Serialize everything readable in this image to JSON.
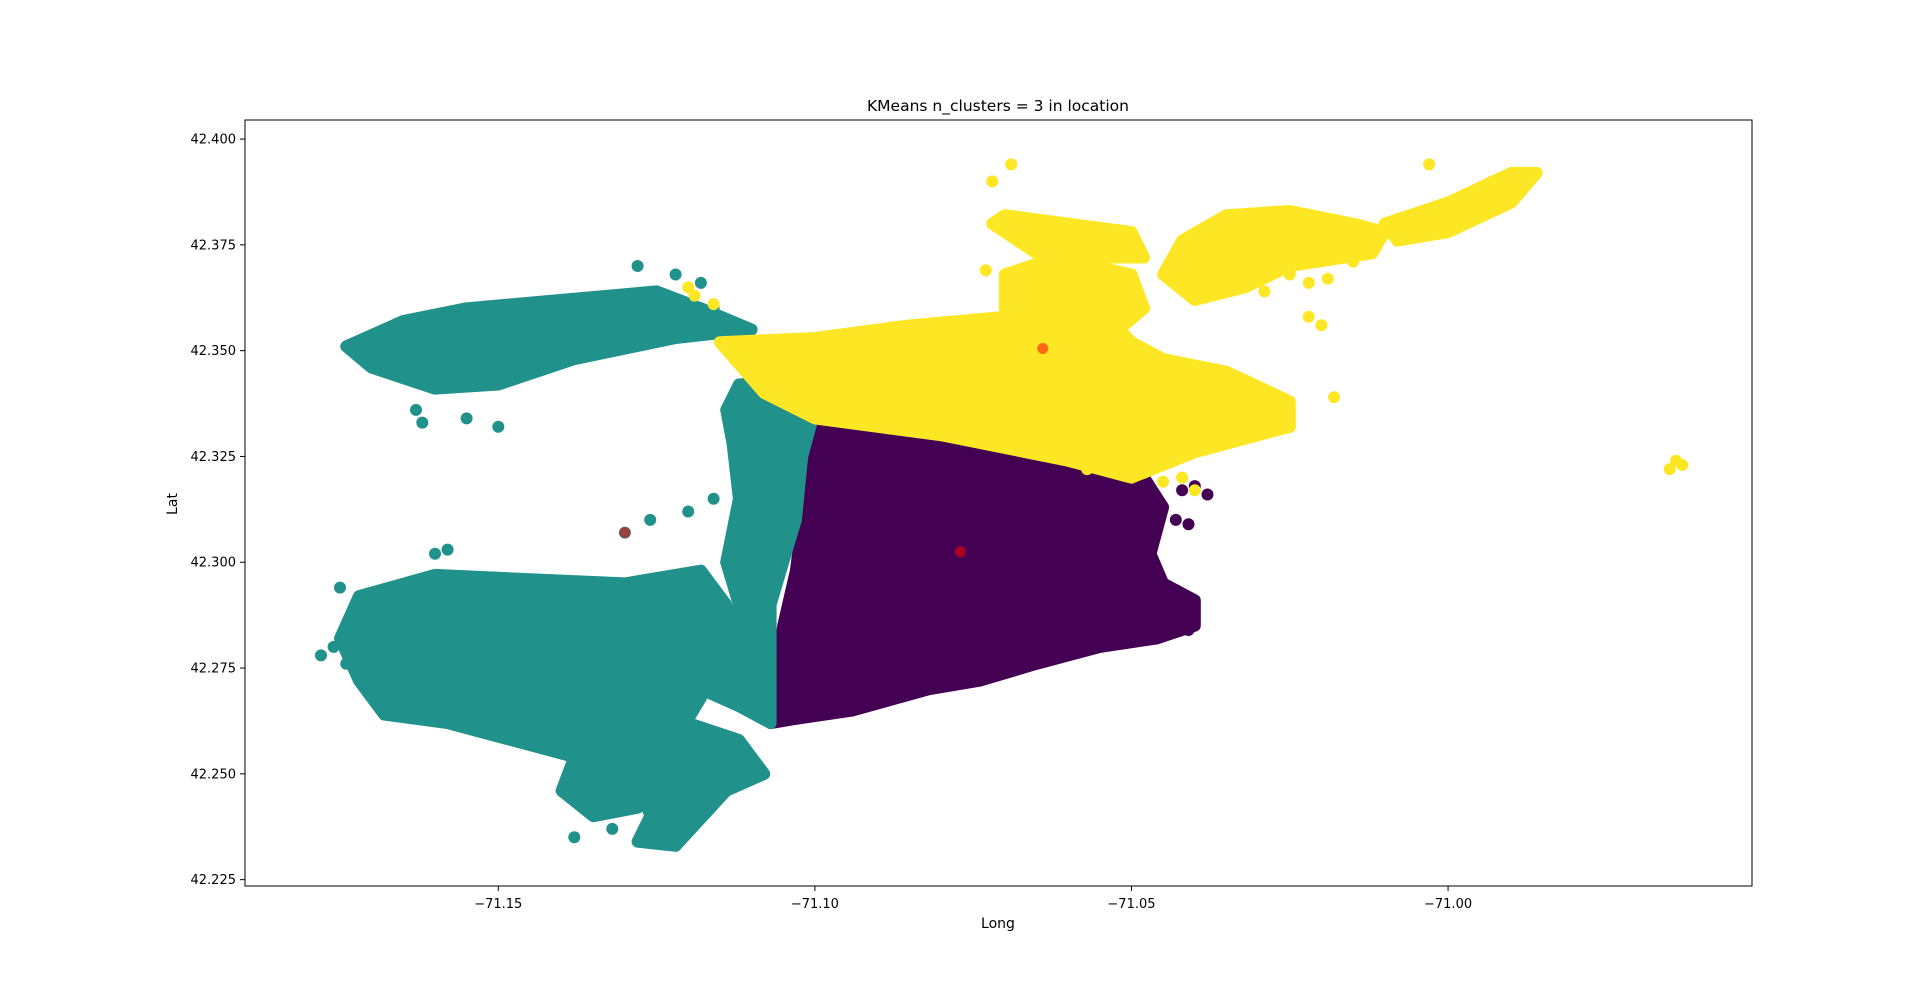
{
  "chart_data": {
    "type": "scatter",
    "title": "KMeans n_clusters = 3 in location",
    "xlabel": "Long",
    "ylabel": "Lat",
    "xlim": [
      -71.19,
      -70.952
    ],
    "ylim": [
      42.2235,
      42.4045
    ],
    "xticks": [
      -71.15,
      -71.1,
      -71.05,
      -71.0
    ],
    "xtick_labels": [
      "−71.15",
      "−71.10",
      "−71.05",
      "−71.00"
    ],
    "yticks": [
      42.225,
      42.25,
      42.275,
      42.3,
      42.325,
      42.35,
      42.375,
      42.4
    ],
    "ytick_labels": [
      "42.225",
      "42.250",
      "42.275",
      "42.300",
      "42.325",
      "42.350",
      "42.375",
      "42.400"
    ],
    "grid": false,
    "legend": "none",
    "colors": {
      "cluster_0": "#440154",
      "cluster_1": "#21918c",
      "cluster_2": "#fde725",
      "centroid": "#ff0000"
    },
    "clusters": [
      {
        "id": 0,
        "color": "#440154",
        "regions": [
          [
            [
              -71.1,
              42.334
            ],
            [
              -71.08,
              42.33
            ],
            [
              -71.06,
              42.324
            ],
            [
              -71.048,
              42.32
            ],
            [
              -71.045,
              42.313
            ],
            [
              -71.047,
              42.302
            ],
            [
              -71.045,
              42.295
            ],
            [
              -71.04,
              42.291
            ],
            [
              -71.04,
              42.285
            ],
            [
              -71.046,
              42.282
            ],
            [
              -71.055,
              42.28
            ],
            [
              -71.065,
              42.276
            ],
            [
              -71.074,
              42.272
            ],
            [
              -71.082,
              42.27
            ],
            [
              -71.094,
              42.265
            ],
            [
              -71.103,
              42.263
            ],
            [
              -71.107,
              42.262
            ],
            [
              -71.106,
              42.275
            ],
            [
              -71.105,
              42.285
            ],
            [
              -71.103,
              42.298
            ],
            [
              -71.102,
              42.31
            ],
            [
              -71.101,
              42.32
            ]
          ]
        ],
        "points": [
          [
            -71.042,
            42.317
          ],
          [
            -71.04,
            42.318
          ],
          [
            -71.038,
            42.316
          ],
          [
            -71.043,
            42.31
          ],
          [
            -71.041,
            42.309
          ],
          [
            -71.094,
            42.305
          ],
          [
            -71.09,
            42.304
          ],
          [
            -71.086,
            42.304
          ],
          [
            -71.098,
            42.302
          ],
          [
            -71.093,
            42.298
          ],
          [
            -71.099,
            42.295
          ],
          [
            -71.094,
            42.29
          ],
          [
            -71.098,
            42.288
          ],
          [
            -71.1,
            42.284
          ],
          [
            -71.103,
            42.28
          ],
          [
            -71.047,
            42.291
          ],
          [
            -71.044,
            42.285
          ],
          [
            -71.041,
            42.284
          ]
        ],
        "centroid": [
          -71.077,
          42.3025
        ]
      },
      {
        "id": 1,
        "color": "#21918c",
        "regions": [
          [
            [
              -71.174,
              42.351
            ],
            [
              -71.165,
              42.357
            ],
            [
              -71.155,
              42.36
            ],
            [
              -71.14,
              42.362
            ],
            [
              -71.125,
              42.364
            ],
            [
              -71.118,
              42.36
            ],
            [
              -71.11,
              42.355
            ],
            [
              -71.122,
              42.353
            ],
            [
              -71.138,
              42.348
            ],
            [
              -71.15,
              42.342
            ],
            [
              -71.16,
              42.341
            ],
            [
              -71.17,
              42.346
            ]
          ],
          [
            [
              -71.112,
              42.342
            ],
            [
              -71.104,
              42.343
            ],
            [
              -71.1,
              42.336
            ],
            [
              -71.102,
              42.325
            ],
            [
              -71.103,
              42.31
            ],
            [
              -71.105,
              42.3
            ],
            [
              -71.107,
              42.29
            ],
            [
              -71.107,
              42.275
            ],
            [
              -71.107,
              42.262
            ],
            [
              -71.112,
              42.266
            ],
            [
              -71.118,
              42.27
            ],
            [
              -71.115,
              42.28
            ],
            [
              -71.112,
              42.29
            ],
            [
              -71.114,
              42.3
            ],
            [
              -71.112,
              42.315
            ],
            [
              -71.113,
              42.328
            ],
            [
              -71.114,
              42.336
            ]
          ],
          [
            [
              -71.172,
              42.292
            ],
            [
              -71.16,
              42.297
            ],
            [
              -71.145,
              42.296
            ],
            [
              -71.13,
              42.295
            ],
            [
              -71.118,
              42.298
            ],
            [
              -71.114,
              42.29
            ],
            [
              -71.115,
              42.28
            ],
            [
              -71.118,
              42.268
            ],
            [
              -71.122,
              42.258
            ],
            [
              -71.12,
              42.248
            ],
            [
              -71.128,
              42.242
            ],
            [
              -71.135,
              42.24
            ],
            [
              -71.14,
              42.246
            ],
            [
              -71.138,
              42.254
            ],
            [
              -71.148,
              42.258
            ],
            [
              -71.158,
              42.262
            ],
            [
              -71.168,
              42.264
            ],
            [
              -71.172,
              42.272
            ],
            [
              -71.175,
              42.282
            ]
          ],
          [
            [
              -71.138,
              42.254
            ],
            [
              -71.128,
              42.25
            ],
            [
              -71.126,
              42.24
            ],
            [
              -71.128,
              42.234
            ],
            [
              -71.122,
              42.233
            ],
            [
              -71.114,
              42.246
            ],
            [
              -71.108,
              42.25
            ],
            [
              -71.112,
              42.258
            ],
            [
              -71.12,
              42.262
            ]
          ]
        ],
        "points": [
          [
            -71.128,
            42.37
          ],
          [
            -71.122,
            42.368
          ],
          [
            -71.118,
            42.366
          ],
          [
            -71.116,
            42.36
          ],
          [
            -71.163,
            42.336
          ],
          [
            -71.162,
            42.333
          ],
          [
            -71.155,
            42.334
          ],
          [
            -71.15,
            42.332
          ],
          [
            -71.13,
            42.307
          ],
          [
            -71.126,
            42.31
          ],
          [
            -71.12,
            42.312
          ],
          [
            -71.116,
            42.315
          ],
          [
            -71.16,
            42.302
          ],
          [
            -71.158,
            42.303
          ],
          [
            -71.175,
            42.294
          ],
          [
            -71.178,
            42.278
          ],
          [
            -71.176,
            42.28
          ],
          [
            -71.174,
            42.276
          ],
          [
            -71.133,
            42.245
          ],
          [
            -71.129,
            42.244
          ],
          [
            -71.138,
            42.235
          ],
          [
            -71.132,
            42.237
          ]
        ],
        "centroid": [
          -71.13,
          42.307
        ]
      },
      {
        "id": 2,
        "color": "#fde725",
        "regions": [
          [
            [
              -71.115,
              42.352
            ],
            [
              -71.1,
              42.353
            ],
            [
              -71.085,
              42.356
            ],
            [
              -71.07,
              42.358
            ],
            [
              -71.062,
              42.362
            ],
            [
              -71.055,
              42.36
            ],
            [
              -71.05,
              42.352
            ],
            [
              -71.045,
              42.348
            ],
            [
              -71.035,
              42.345
            ],
            [
              -71.025,
              42.338
            ],
            [
              -71.025,
              42.332
            ],
            [
              -71.04,
              42.33
            ],
            [
              -71.048,
              42.326
            ],
            [
              -71.05,
              42.32
            ],
            [
              -71.06,
              42.324
            ],
            [
              -71.08,
              42.33
            ],
            [
              -71.1,
              42.334
            ],
            [
              -71.108,
              42.34
            ]
          ],
          [
            [
              -71.07,
              42.382
            ],
            [
              -71.06,
              42.38
            ],
            [
              -71.05,
              42.378
            ],
            [
              -71.048,
              42.372
            ],
            [
              -71.055,
              42.372
            ],
            [
              -71.065,
              42.373
            ],
            [
              -71.072,
              42.38
            ]
          ],
          [
            [
              -71.07,
              42.368
            ],
            [
              -71.062,
              42.372
            ],
            [
              -71.05,
              42.368
            ],
            [
              -71.048,
              42.36
            ],
            [
              -71.052,
              42.355
            ],
            [
              -71.062,
              42.358
            ],
            [
              -71.07,
              42.36
            ]
          ],
          [
            [
              -71.042,
              42.376
            ],
            [
              -71.035,
              42.382
            ],
            [
              -71.025,
              42.383
            ],
            [
              -71.015,
              42.38
            ],
            [
              -71.01,
              42.378
            ],
            [
              -71.012,
              42.373
            ],
            [
              -71.025,
              42.37
            ],
            [
              -71.032,
              42.365
            ],
            [
              -71.04,
              42.362
            ],
            [
              -71.045,
              42.368
            ]
          ],
          [
            [
              -71.01,
              42.38
            ],
            [
              -71.0,
              42.385
            ],
            [
              -70.99,
              42.392
            ],
            [
              -70.986,
              42.392
            ],
            [
              -70.99,
              42.385
            ],
            [
              -71.0,
              42.378
            ],
            [
              -71.008,
              42.376
            ]
          ],
          [
            [
              -71.06,
              42.324
            ],
            [
              -71.05,
              42.328
            ],
            [
              -71.04,
              42.331
            ],
            [
              -71.03,
              42.333
            ],
            [
              -71.025,
              42.332
            ],
            [
              -71.04,
              42.326
            ],
            [
              -71.05,
              42.32
            ]
          ]
        ],
        "points": [
          [
            -71.119,
            42.363
          ],
          [
            -71.116,
            42.361
          ],
          [
            -71.12,
            42.365
          ],
          [
            -71.069,
            42.394
          ],
          [
            -71.072,
            42.39
          ],
          [
            -71.063,
            42.378
          ],
          [
            -71.073,
            42.369
          ],
          [
            -71.068,
            42.368
          ],
          [
            -71.018,
            42.339
          ],
          [
            -71.055,
            42.326
          ],
          [
            -71.057,
            42.322
          ],
          [
            -71.045,
            42.319
          ],
          [
            -71.042,
            42.32
          ],
          [
            -71.04,
            42.317
          ],
          [
            -71.025,
            42.368
          ],
          [
            -71.022,
            42.366
          ],
          [
            -71.019,
            42.367
          ],
          [
            -71.022,
            42.358
          ],
          [
            -71.02,
            42.356
          ],
          [
            -71.029,
            42.364
          ],
          [
            -71.03,
            42.37
          ],
          [
            -71.015,
            42.371
          ],
          [
            -71.003,
            42.394
          ],
          [
            -70.993,
            42.39
          ],
          [
            -70.988,
            42.391
          ],
          [
            -70.964,
            42.324
          ],
          [
            -70.965,
            42.322
          ],
          [
            -70.963,
            42.323
          ]
        ],
        "centroid": [
          -71.064,
          42.3505
        ]
      }
    ]
  }
}
